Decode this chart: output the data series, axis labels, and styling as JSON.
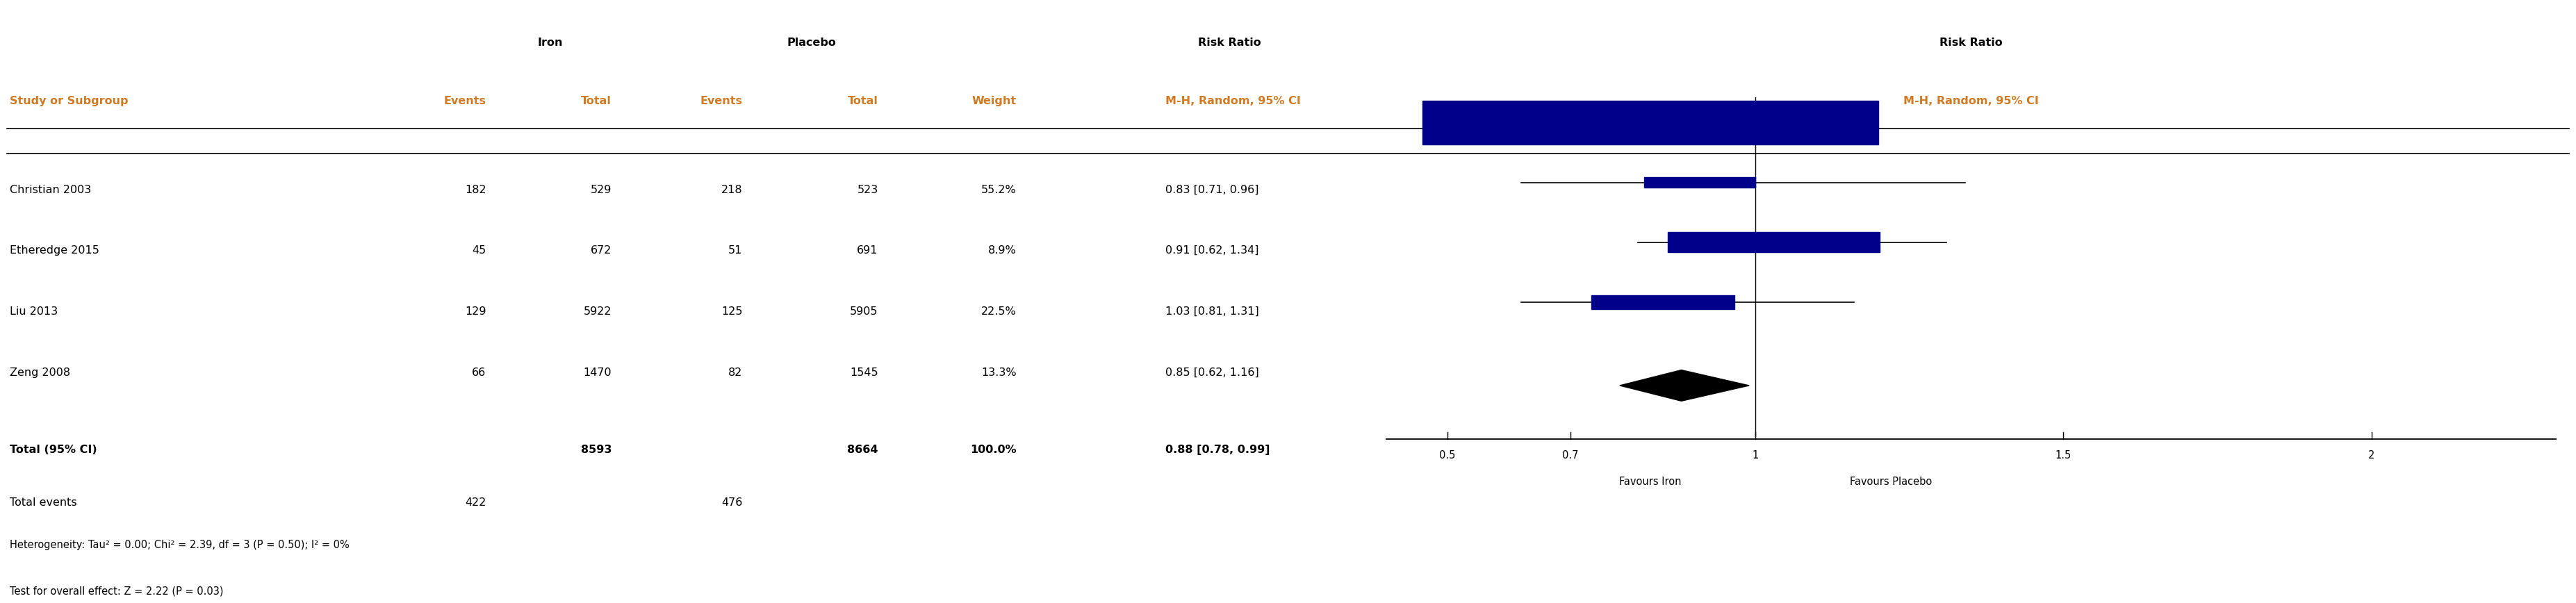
{
  "studies": [
    {
      "name": "Christian 2003",
      "iron_events": 182,
      "iron_total": 529,
      "placebo_events": 218,
      "placebo_total": 523,
      "weight": "55.2%",
      "rr": 0.83,
      "ci_low": 0.71,
      "ci_high": 0.96,
      "rr_label": "0.83 [0.71, 0.96]"
    },
    {
      "name": "Etheredge 2015",
      "iron_events": 45,
      "iron_total": 672,
      "placebo_events": 51,
      "placebo_total": 691,
      "weight": "8.9%",
      "rr": 0.91,
      "ci_low": 0.62,
      "ci_high": 1.34,
      "rr_label": "0.91 [0.62, 1.34]"
    },
    {
      "name": "Liu 2013",
      "iron_events": 129,
      "iron_total": 5922,
      "placebo_events": 125,
      "placebo_total": 5905,
      "weight": "22.5%",
      "rr": 1.03,
      "ci_low": 0.81,
      "ci_high": 1.31,
      "rr_label": "1.03 [0.81, 1.31]"
    },
    {
      "name": "Zeng 2008",
      "iron_events": 66,
      "iron_total": 1470,
      "placebo_events": 82,
      "placebo_total": 1545,
      "weight": "13.3%",
      "rr": 0.85,
      "ci_low": 0.62,
      "ci_high": 1.16,
      "rr_label": "0.85 [0.62, 1.16]"
    }
  ],
  "total": {
    "iron_total": 8593,
    "placebo_total": 8664,
    "weight": "100.0%",
    "rr": 0.88,
    "ci_low": 0.78,
    "ci_high": 0.99,
    "rr_label": "0.88 [0.78, 0.99]",
    "iron_events": 422,
    "placebo_events": 476
  },
  "heterogeneity": "Heterogeneity: Tau² = 0.00; Chi² = 2.39, df = 3 (P = 0.50); I² = 0%",
  "overall_effect": "Test for overall effect: Z = 2.22 (P = 0.03)",
  "col_header_iron": "Iron",
  "col_header_placebo": "Placebo",
  "col_header_rr_left": "Risk Ratio",
  "col_header_rr_right": "Risk Ratio",
  "col_subheader_left": "M-H, Random, 95% CI",
  "col_subheader_right": "M-H, Random, 95% CI",
  "col_events": "Events",
  "col_total": "Total",
  "col_weight": "Weight",
  "study_col_label": "Study or Subgroup",
  "forest_xlim": [
    0.4,
    2.3
  ],
  "forest_xticks": [
    0.5,
    0.7,
    1.0,
    1.5,
    2.0
  ],
  "forest_xlabel_left": "Favours Iron",
  "forest_xlabel_right": "Favours Placebo",
  "square_color": "#00008B",
  "diamond_color": "#000000",
  "ci_line_color": "#000000",
  "header_color": "#D17A22",
  "text_color": "#000000",
  "bg_color": "#FFFFFF"
}
